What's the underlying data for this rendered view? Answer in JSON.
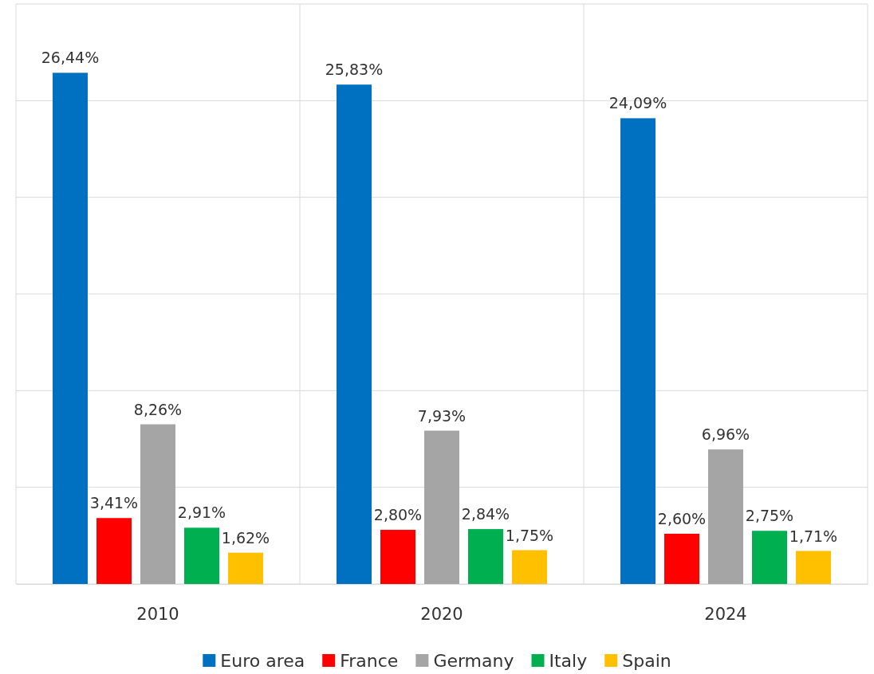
{
  "chart_data": {
    "type": "bar",
    "categories": [
      "2010",
      "2020",
      "2024"
    ],
    "series": [
      {
        "name": "Euro area",
        "color": "#0070c0",
        "values": [
          26.44,
          25.83,
          24.09
        ],
        "value_labels": [
          "26,44%",
          "25,83%",
          "24,09%"
        ]
      },
      {
        "name": "France",
        "color": "#ff0000",
        "values": [
          3.41,
          2.8,
          2.6
        ],
        "value_labels": [
          "3,41%",
          "2,80%",
          "2,60%"
        ]
      },
      {
        "name": "Germany",
        "color": "#a5a5a5",
        "values": [
          8.26,
          7.93,
          6.96
        ],
        "value_labels": [
          "8,26%",
          "7,93%",
          "6,96%"
        ]
      },
      {
        "name": "Italy",
        "color": "#00b050",
        "values": [
          2.91,
          2.84,
          2.75
        ],
        "value_labels": [
          "2,91%",
          "2,84%",
          "2,75%"
        ]
      },
      {
        "name": "Spain",
        "color": "#ffc000",
        "values": [
          1.62,
          1.75,
          1.71
        ],
        "value_labels": [
          "1,62%",
          "1,75%",
          "1,71%"
        ]
      }
    ],
    "ylim": [
      0,
      30
    ],
    "yticks": [
      {
        "value": 0,
        "label": null
      },
      {
        "value": 5,
        "label": null
      },
      {
        "value": 10,
        "label": null
      },
      {
        "value": 15,
        "label": null
      },
      {
        "value": 20,
        "label": null
      },
      {
        "value": 25,
        "label": null
      },
      {
        "value": 30,
        "label": null
      }
    ],
    "tick_labels": "x",
    "grid": true,
    "legend": "bottom"
  }
}
